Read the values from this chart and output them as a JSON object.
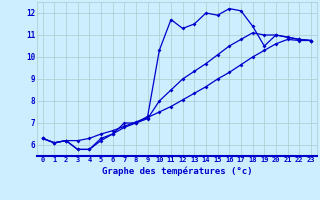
{
  "xlabel": "Graphe des températures (°c)",
  "background_color": "#cceeff",
  "line_color": "#0000cc",
  "xlim": [
    -0.5,
    23.5
  ],
  "ylim": [
    5.5,
    12.5
  ],
  "xticks": [
    0,
    1,
    2,
    3,
    4,
    5,
    6,
    7,
    8,
    9,
    10,
    11,
    12,
    13,
    14,
    15,
    16,
    17,
    18,
    19,
    20,
    21,
    22,
    23
  ],
  "yticks": [
    6,
    7,
    8,
    9,
    10,
    11,
    12
  ],
  "line1_x": [
    0,
    1,
    2,
    3,
    4,
    5,
    6,
    7,
    8,
    9,
    10,
    11,
    12,
    13,
    14,
    15,
    16,
    17,
    18,
    19,
    20,
    21,
    22,
    23
  ],
  "line1_y": [
    6.3,
    6.1,
    6.2,
    5.8,
    5.8,
    6.3,
    6.5,
    7.0,
    7.0,
    7.3,
    10.3,
    11.7,
    11.3,
    11.5,
    12.0,
    11.9,
    12.2,
    12.1,
    11.4,
    10.5,
    11.0,
    10.9,
    10.8,
    10.75
  ],
  "line2_x": [
    0,
    1,
    2,
    3,
    4,
    5,
    6,
    7,
    8,
    9,
    10,
    11,
    12,
    13,
    14,
    15,
    16,
    17,
    18,
    19,
    20,
    21,
    22,
    23
  ],
  "line2_y": [
    6.3,
    6.1,
    6.2,
    6.2,
    6.3,
    6.5,
    6.65,
    6.85,
    7.05,
    7.25,
    7.5,
    7.75,
    8.05,
    8.35,
    8.65,
    9.0,
    9.3,
    9.65,
    10.0,
    10.3,
    10.6,
    10.8,
    10.75,
    10.75
  ],
  "line3_x": [
    0,
    1,
    2,
    3,
    4,
    5,
    6,
    7,
    8,
    9,
    10,
    11,
    12,
    13,
    14,
    15,
    16,
    17,
    18,
    19,
    20,
    21,
    22,
    23
  ],
  "line3_y": [
    6.3,
    6.1,
    6.2,
    5.8,
    5.8,
    6.2,
    6.5,
    6.8,
    7.0,
    7.2,
    8.0,
    8.5,
    9.0,
    9.35,
    9.7,
    10.1,
    10.5,
    10.8,
    11.1,
    11.0,
    11.0,
    10.9,
    10.8,
    10.75
  ]
}
